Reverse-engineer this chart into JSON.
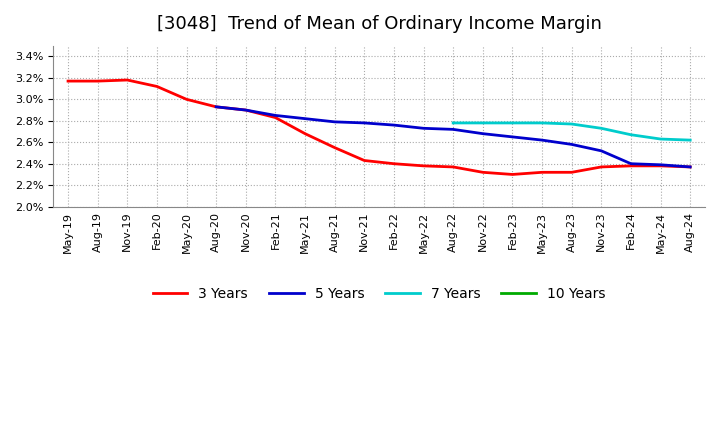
{
  "title": "[3048]  Trend of Mean of Ordinary Income Margin",
  "ylim": [
    0.02,
    0.035
  ],
  "yticks": [
    0.02,
    0.022,
    0.024,
    0.026,
    0.028,
    0.03,
    0.032,
    0.034
  ],
  "background_color": "#ffffff",
  "grid_color": "#aaaaaa",
  "x_labels": [
    "May-19",
    "Aug-19",
    "Nov-19",
    "Feb-20",
    "May-20",
    "Aug-20",
    "Nov-20",
    "Feb-21",
    "May-21",
    "Aug-21",
    "Nov-21",
    "Feb-22",
    "May-22",
    "Aug-22",
    "Nov-22",
    "Feb-23",
    "May-23",
    "Aug-23",
    "Nov-23",
    "Feb-24",
    "May-24",
    "Aug-24"
  ],
  "series": {
    "3 Years": {
      "color": "#ff0000",
      "xi": [
        0,
        1,
        2,
        3,
        4,
        5,
        6,
        7,
        8,
        9,
        10,
        11,
        12,
        13,
        14,
        15,
        16,
        17,
        18,
        19,
        20,
        21
      ],
      "y": [
        0.0317,
        0.0317,
        0.0318,
        0.0312,
        0.03,
        0.0293,
        0.029,
        0.0283,
        0.0268,
        0.0255,
        0.0243,
        0.024,
        0.0238,
        0.0237,
        0.0232,
        0.023,
        0.0232,
        0.0232,
        0.0237,
        0.0238,
        0.0238,
        0.0237
      ]
    },
    "5 Years": {
      "color": "#0000cc",
      "xi": [
        5,
        6,
        7,
        8,
        9,
        10,
        11,
        12,
        13,
        14,
        15,
        16,
        17,
        18,
        19,
        20,
        21
      ],
      "y": [
        0.0293,
        0.029,
        0.0285,
        0.0282,
        0.0279,
        0.0278,
        0.0276,
        0.0273,
        0.0272,
        0.0268,
        0.0265,
        0.0262,
        0.0258,
        0.0252,
        0.024,
        0.0239,
        0.0237
      ]
    },
    "7 Years": {
      "color": "#00cccc",
      "xi": [
        13,
        14,
        15,
        16,
        17,
        18,
        19,
        20,
        21
      ],
      "y": [
        0.0278,
        0.0278,
        0.0278,
        0.0278,
        0.0277,
        0.0273,
        0.0267,
        0.0263,
        0.0262
      ]
    },
    "10 Years": {
      "color": "#00aa00",
      "xi": [],
      "y": []
    }
  },
  "legend_labels": [
    "3 Years",
    "5 Years",
    "7 Years",
    "10 Years"
  ],
  "title_fontsize": 13,
  "tick_fontsize": 8,
  "legend_fontsize": 10
}
